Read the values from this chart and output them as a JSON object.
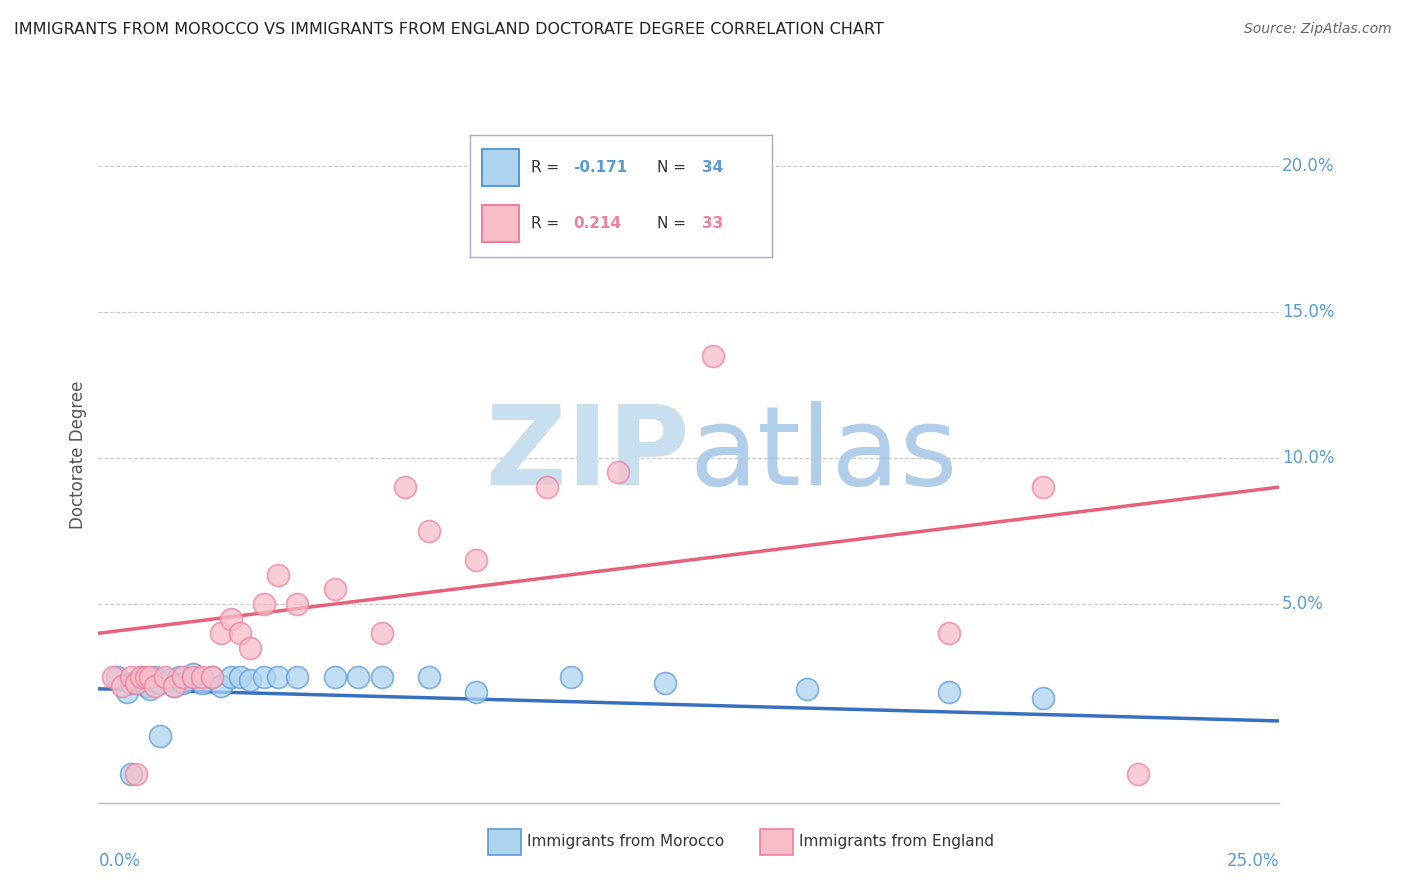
{
  "title": "IMMIGRANTS FROM MOROCCO VS IMMIGRANTS FROM ENGLAND DOCTORATE DEGREE CORRELATION CHART",
  "source": "Source: ZipAtlas.com",
  "ylabel": "Doctorate Degree",
  "color_morocco": "#AED4F0",
  "color_england": "#F7BDC8",
  "color_morocco_edge": "#5B9BD5",
  "color_england_edge": "#EE7FA0",
  "color_morocco_line": "#3870C0",
  "color_england_line": "#E8607A",
  "color_ytick": "#5B9BD5",
  "color_title": "#222222",
  "color_source": "#666666",
  "color_grid": "#CCCCCC",
  "color_watermark_zip": "#C8DFF0",
  "color_watermark_atlas": "#A8C8E8",
  "xlim": [
    0.0,
    0.25
  ],
  "ylim": [
    -0.018,
    0.22
  ],
  "yticks": [
    0.0,
    0.05,
    0.1,
    0.15,
    0.2
  ],
  "ytick_labels": [
    "",
    "5.0%",
    "10.0%",
    "15.0%",
    "20.0%"
  ],
  "morocco_trend_x": [
    0.0,
    0.25
  ],
  "morocco_trend_y": [
    0.021,
    0.01
  ],
  "england_trend_x": [
    0.0,
    0.25
  ],
  "england_trend_y": [
    0.04,
    0.09
  ],
  "morocco_x": [
    0.004,
    0.006,
    0.007,
    0.009,
    0.01,
    0.011,
    0.012,
    0.013,
    0.015,
    0.016,
    0.017,
    0.018,
    0.02,
    0.022,
    0.024,
    0.026,
    0.028,
    0.03,
    0.032,
    0.035,
    0.038,
    0.042,
    0.05,
    0.055,
    0.06,
    0.07,
    0.08,
    0.1,
    0.12,
    0.15,
    0.18,
    0.2,
    0.007,
    0.013
  ],
  "morocco_y": [
    0.025,
    0.02,
    0.023,
    0.025,
    0.022,
    0.021,
    0.025,
    0.023,
    0.024,
    0.022,
    0.025,
    0.023,
    0.026,
    0.023,
    0.025,
    0.022,
    0.025,
    0.025,
    0.024,
    0.025,
    0.025,
    0.025,
    0.025,
    0.025,
    0.025,
    0.025,
    0.02,
    0.025,
    0.023,
    0.021,
    0.02,
    0.018,
    -0.008,
    0.005
  ],
  "england_x": [
    0.003,
    0.005,
    0.007,
    0.008,
    0.009,
    0.01,
    0.011,
    0.012,
    0.014,
    0.016,
    0.018,
    0.02,
    0.022,
    0.024,
    0.026,
    0.028,
    0.03,
    0.032,
    0.035,
    0.038,
    0.042,
    0.05,
    0.06,
    0.065,
    0.07,
    0.08,
    0.095,
    0.11,
    0.13,
    0.18,
    0.2,
    0.22,
    0.008
  ],
  "england_y": [
    0.025,
    0.022,
    0.025,
    0.023,
    0.025,
    0.025,
    0.025,
    0.022,
    0.025,
    0.022,
    0.025,
    0.025,
    0.025,
    0.025,
    0.04,
    0.045,
    0.04,
    0.035,
    0.05,
    0.06,
    0.05,
    0.055,
    0.04,
    0.09,
    0.075,
    0.065,
    0.09,
    0.095,
    0.135,
    0.04,
    0.09,
    -0.008,
    -0.008
  ]
}
